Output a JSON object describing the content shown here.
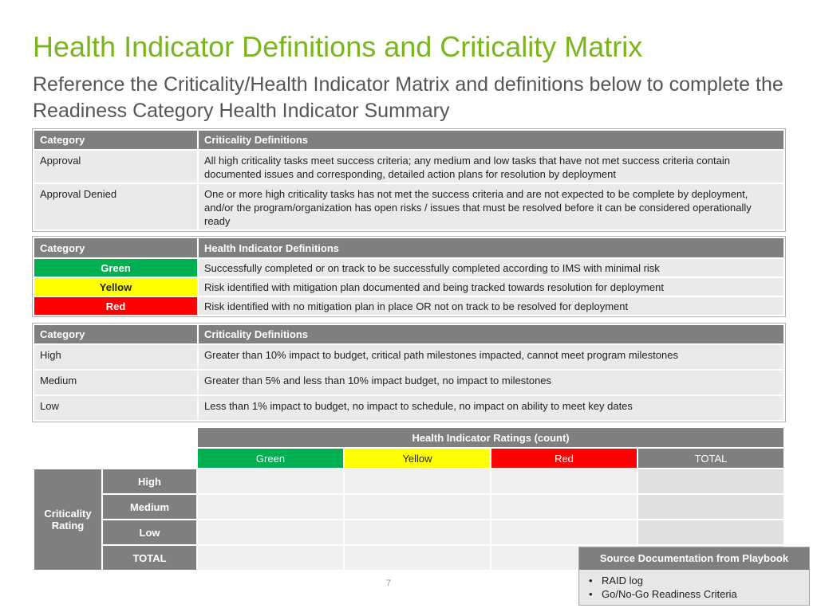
{
  "title": "Health Indicator Definitions and Criticality Matrix",
  "subtitle": "Reference the Criticality/Health Indicator Matrix and definitions below to complete the Readiness Category Health Indicator Summary",
  "colors": {
    "accent": "#7ab51d",
    "header": "#7f7f7f",
    "green": "#00b050",
    "yellow": "#ffff00",
    "red": "#ff0000"
  },
  "approval_table": {
    "headers": [
      "Category",
      "Criticality Definitions"
    ],
    "rows": [
      {
        "category": "Approval",
        "definition": "All high criticality tasks meet success criteria; any medium and low tasks that have not met success criteria contain documented issues and corresponding, detailed action plans for resolution by deployment"
      },
      {
        "category": "Approval Denied",
        "definition": "One or more high criticality tasks has not met the success criteria and are not expected to be complete by deployment, and/or the program/organization has open risks / issues that must be resolved before it can be considered operationally ready"
      }
    ]
  },
  "health_table": {
    "headers": [
      "Category",
      "Health Indicator Definitions"
    ],
    "rows": [
      {
        "category": "Green",
        "definition": "Successfully completed or on track to be successfully completed according to IMS with minimal risk"
      },
      {
        "category": "Yellow",
        "definition": "Risk identified with mitigation plan documented and being tracked towards resolution for deployment"
      },
      {
        "category": "Red",
        "definition": "Risk identified with no mitigation plan in place OR not on track to be resolved for deployment"
      }
    ]
  },
  "criticality_table": {
    "headers": [
      "Category",
      "Criticality Definitions"
    ],
    "rows": [
      {
        "category": "High",
        "definition": "Greater than 10% impact to budget, critical path milestones impacted, cannot meet program milestones"
      },
      {
        "category": "Medium",
        "definition": "Greater than 5% and less than 10% impact budget, no impact to milestones"
      },
      {
        "category": "Low",
        "definition": "Less than 1% impact to budget, no impact to schedule, no impact on ability to meet key dates"
      }
    ]
  },
  "ratings_matrix": {
    "title": "Health Indicator Ratings (count)",
    "columns": [
      "Green",
      "Yellow",
      "Red",
      "TOTAL"
    ],
    "group_label": "Criticality Rating",
    "rows": [
      "High",
      "Medium",
      "Low"
    ],
    "total_label": "TOTAL"
  },
  "source_box": {
    "title": "Source Documentation from Playbook",
    "items": [
      "RAID log",
      "Go/No-Go Readiness Criteria"
    ]
  },
  "page_number": "7"
}
